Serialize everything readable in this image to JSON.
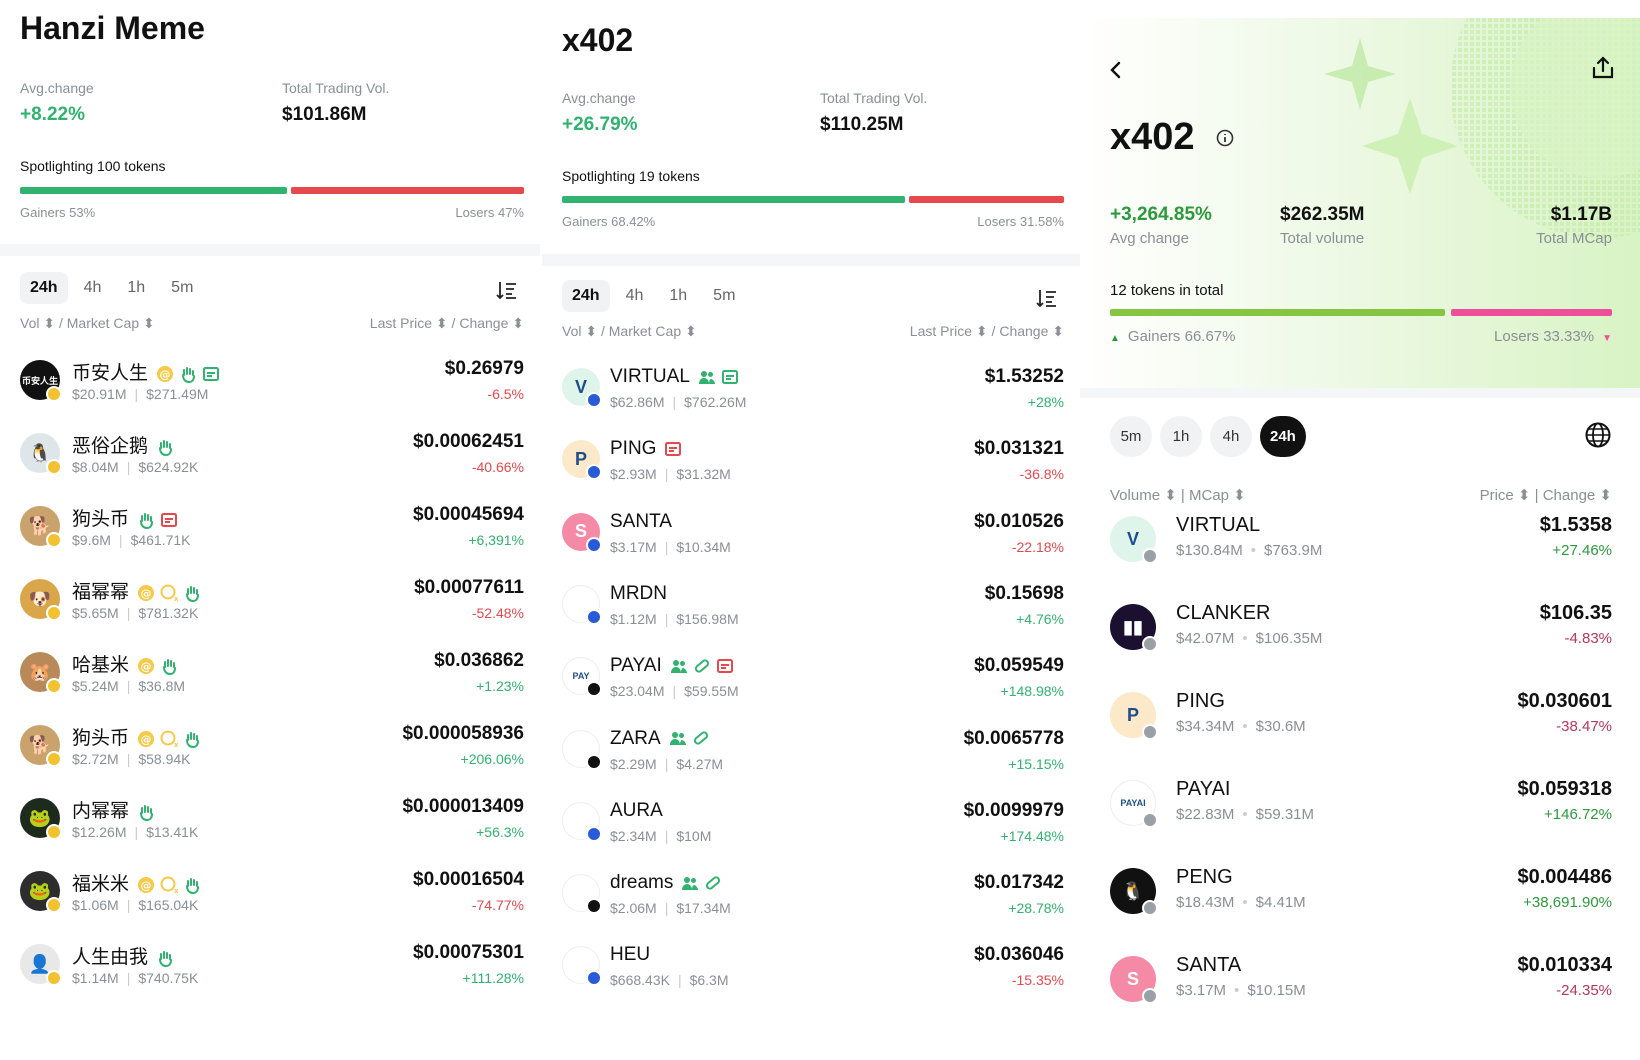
{
  "panel1": {
    "title": "Hanzi Meme",
    "avg_change_label": "Avg.change",
    "avg_change": "+8.22%",
    "total_vol_label": "Total Trading Vol.",
    "total_vol": "$101.86M",
    "spotlight": "Spotlighting 100 tokens",
    "gainers": "Gainers 53%",
    "losers": "Losers 47%",
    "gainers_fraction": 0.53,
    "tabs": [
      "24h",
      "4h",
      "1h",
      "5m"
    ],
    "col_left": "Vol ⬍ / Market Cap ⬍",
    "col_right": "Last Price ⬍ / Change ⬍",
    "rows": [
      {
        "name": "币安人生",
        "vol": "$20.91M",
        "mcap": "$271.49M",
        "price": "$0.26979",
        "change": "-6.5%",
        "dir": "down",
        "avatar_text": "币安人生",
        "avatar_color": "#111111"
      },
      {
        "name": "恶俗企鹅",
        "vol": "$8.04M",
        "mcap": "$624.92K",
        "price": "$0.00062451",
        "change": "-40.66%",
        "dir": "down",
        "avatar_text": "🐧",
        "avatar_color": "#dfe6ea"
      },
      {
        "name": "狗头币",
        "vol": "$9.6M",
        "mcap": "$461.71K",
        "price": "$0.00045694",
        "change": "+6,391%",
        "dir": "up",
        "avatar_text": "🐕",
        "avatar_color": "#c9a36b"
      },
      {
        "name": "福幂幂",
        "vol": "$5.65M",
        "mcap": "$781.32K",
        "price": "$0.00077611",
        "change": "-52.48%",
        "dir": "down",
        "avatar_text": "🐶",
        "avatar_color": "#d9a64a"
      },
      {
        "name": "哈基米",
        "vol": "$5.24M",
        "mcap": "$36.8M",
        "price": "$0.036862",
        "change": "+1.23%",
        "dir": "up",
        "avatar_text": "🐹",
        "avatar_color": "#b9895a"
      },
      {
        "name": "狗头币",
        "vol": "$2.72M",
        "mcap": "$58.94K",
        "price": "$0.000058936",
        "change": "+206.06%",
        "dir": "up",
        "avatar_text": "🐕",
        "avatar_color": "#c9a36b"
      },
      {
        "name": "内幂幂",
        "vol": "$12.26M",
        "mcap": "$13.41K",
        "price": "$0.000013409",
        "change": "+56.3%",
        "dir": "up",
        "avatar_text": "🐸",
        "avatar_color": "#1d2b1f"
      },
      {
        "name": "福米米",
        "vol": "$1.06M",
        "mcap": "$165.04K",
        "price": "$0.00016504",
        "change": "-74.77%",
        "dir": "down",
        "avatar_text": "🐸",
        "avatar_color": "#2d2d2d"
      },
      {
        "name": "人生由我",
        "vol": "$1.14M",
        "mcap": "$740.75K",
        "price": "$0.00075301",
        "change": "+111.28%",
        "dir": "up",
        "avatar_text": "👤",
        "avatar_color": "#e8e8e8"
      }
    ]
  },
  "panel2": {
    "title": "x402",
    "avg_change_label": "Avg.change",
    "avg_change": "+26.79%",
    "total_vol_label": "Total Trading Vol.",
    "total_vol": "$110.25M",
    "spotlight": "Spotlighting 19 tokens",
    "gainers": "Gainers 68.42%",
    "losers": "Losers 31.58%",
    "gainers_fraction": 0.6842,
    "tabs": [
      "24h",
      "4h",
      "1h",
      "5m"
    ],
    "col_left": "Vol ⬍ / Market Cap ⬍",
    "col_right": "Last Price ⬍ / Change ⬍",
    "rows": [
      {
        "name": "VIRTUAL",
        "vol": "$62.86M",
        "mcap": "$762.26M",
        "price": "$1.53252",
        "change": "+28%",
        "dir": "up",
        "avatar_text": "V",
        "avatar_color": "#dff5ec"
      },
      {
        "name": "PING",
        "vol": "$2.93M",
        "mcap": "$31.32M",
        "price": "$0.031321",
        "change": "-36.8%",
        "dir": "down",
        "avatar_text": "P",
        "avatar_color": "#fbe9c9"
      },
      {
        "name": "SANTA",
        "vol": "$3.17M",
        "mcap": "$10.34M",
        "price": "$0.010526",
        "change": "-22.18%",
        "dir": "down",
        "avatar_text": "S",
        "avatar_color": "#f48aa6"
      },
      {
        "name": "MRDN",
        "vol": "$1.12M",
        "mcap": "$156.98M",
        "price": "$0.15698",
        "change": "+4.76%",
        "dir": "up",
        "avatar_text": "",
        "avatar_color": "#ffffff"
      },
      {
        "name": "PAYAI",
        "vol": "$23.04M",
        "mcap": "$59.55M",
        "price": "$0.059549",
        "change": "+148.98%",
        "dir": "up",
        "avatar_text": "PAY",
        "avatar_color": "#ffffff"
      },
      {
        "name": "ZARA",
        "vol": "$2.29M",
        "mcap": "$4.27M",
        "price": "$0.0065778",
        "change": "+15.15%",
        "dir": "up",
        "avatar_text": "",
        "avatar_color": "#ffffff"
      },
      {
        "name": "AURA",
        "vol": "$2.34M",
        "mcap": "$10M",
        "price": "$0.0099979",
        "change": "+174.48%",
        "dir": "up",
        "avatar_text": "",
        "avatar_color": "#ffffff"
      },
      {
        "name": "dreams",
        "vol": "$2.06M",
        "mcap": "$17.34M",
        "price": "$0.017342",
        "change": "+28.78%",
        "dir": "up",
        "avatar_text": "",
        "avatar_color": "#ffffff"
      },
      {
        "name": "HEU",
        "vol": "$668.43K",
        "mcap": "$6.3M",
        "price": "$0.036046",
        "change": "-15.35%",
        "dir": "down",
        "avatar_text": "",
        "avatar_color": "#ffffff"
      }
    ]
  },
  "panel3": {
    "title": "x402",
    "avg_change": "+3,264.85%",
    "avg_change_label": "Avg change",
    "total_volume": "$262.35M",
    "total_volume_label": "Total volume",
    "total_mcap": "$1.17B",
    "total_mcap_label": "Total MCap",
    "tokens_total": "12 tokens in total",
    "gainers": "Gainers 66.67%",
    "losers": "Losers 33.33%",
    "gainers_fraction": 0.6667,
    "pills": [
      "5m",
      "1h",
      "4h",
      "24h"
    ],
    "col_left": "Volume ⬍ | MCap ⬍",
    "col_right": "Price ⬍ | Change ⬍",
    "rows": [
      {
        "name": "VIRTUAL",
        "vol": "$130.84M",
        "mcap": "$763.9M",
        "price": "$1.5358",
        "change": "+27.46%",
        "dir": "up",
        "avatar_text": "V",
        "avatar_color": "#dff5ec"
      },
      {
        "name": "CLANKER",
        "vol": "$42.07M",
        "mcap": "$106.35M",
        "price": "$106.35",
        "change": "-4.83%",
        "dir": "down",
        "avatar_text": "▮▮",
        "avatar_color": "#1b1030"
      },
      {
        "name": "PING",
        "vol": "$34.34M",
        "mcap": "$30.6M",
        "price": "$0.030601",
        "change": "-38.47%",
        "dir": "down",
        "avatar_text": "P",
        "avatar_color": "#fbe9c9"
      },
      {
        "name": "PAYAI",
        "vol": "$22.83M",
        "mcap": "$59.31M",
        "price": "$0.059318",
        "change": "+146.72%",
        "dir": "up",
        "avatar_text": "PAYAI",
        "avatar_color": "#ffffff"
      },
      {
        "name": "PENG",
        "vol": "$18.43M",
        "mcap": "$4.41M",
        "price": "$0.004486",
        "change": "+38,691.90%",
        "dir": "up",
        "avatar_text": "🐧",
        "avatar_color": "#111111"
      },
      {
        "name": "SANTA",
        "vol": "$3.17M",
        "mcap": "$10.15M",
        "price": "$0.010334",
        "change": "-24.35%",
        "dir": "down",
        "avatar_text": "S",
        "avatar_color": "#f48aa6"
      }
    ]
  },
  "colors": {
    "gain": "#2fb36e",
    "loss": "#e5484d",
    "gain3": "#86c541",
    "loss3": "#ef4f9a",
    "chg_up3": "#2b9a3a",
    "chg_down3": "#b8365a"
  }
}
